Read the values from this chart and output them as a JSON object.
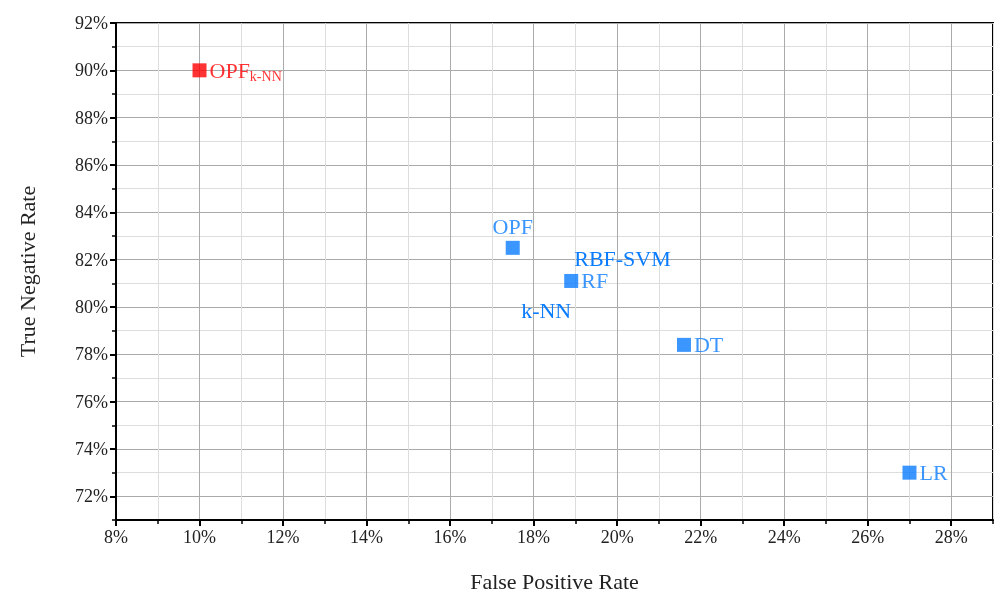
{
  "chart_data": {
    "type": "scatter",
    "xlabel": "False Positive Rate",
    "ylabel": "True Negative Rate",
    "xlim": [
      8,
      29
    ],
    "ylim": [
      71,
      92
    ],
    "xticks": [
      {
        "value": 8,
        "label": "8%"
      },
      {
        "value": 10,
        "label": "10%"
      },
      {
        "value": 12,
        "label": "12%"
      },
      {
        "value": 14,
        "label": "14%"
      },
      {
        "value": 16,
        "label": "16%"
      },
      {
        "value": 18,
        "label": "18%"
      },
      {
        "value": 20,
        "label": "20%"
      },
      {
        "value": 22,
        "label": "22%"
      },
      {
        "value": 24,
        "label": "24%"
      },
      {
        "value": 26,
        "label": "26%"
      },
      {
        "value": 28,
        "label": "28%"
      }
    ],
    "yticks": [
      {
        "value": 72,
        "label": "72%"
      },
      {
        "value": 74,
        "label": "74%"
      },
      {
        "value": 76,
        "label": "76%"
      },
      {
        "value": 78,
        "label": "78%"
      },
      {
        "value": 80,
        "label": "80%"
      },
      {
        "value": 82,
        "label": "82%"
      },
      {
        "value": 84,
        "label": "84%"
      },
      {
        "value": 86,
        "label": "86%"
      },
      {
        "value": 88,
        "label": "88%"
      },
      {
        "value": 90,
        "label": "90%"
      },
      {
        "value": 92,
        "label": "92%"
      }
    ],
    "grid": true,
    "marker": "square",
    "legend": false,
    "series": [
      {
        "name": "OPF$_{k-NN}$",
        "color": "#ff0000",
        "x": [
          10
        ],
        "values": [
          90
        ]
      },
      {
        "name": "OPF",
        "color": "#0a7cff",
        "x": [
          17.5
        ],
        "values": [
          82.5
        ]
      },
      {
        "name": "RF",
        "color": "#0a7cff",
        "x": [
          18.9
        ],
        "values": [
          81.1
        ]
      },
      {
        "name": "DT",
        "color": "#0a7cff",
        "x": [
          21.6
        ],
        "values": [
          78.4
        ]
      },
      {
        "name": "LR",
        "color": "#0a7cff",
        "x": [
          27.0
        ],
        "values": [
          73
        ]
      }
    ],
    "annotations": [
      {
        "text": "RBF-SVM",
        "x": 18.9,
        "y": 81.1
      },
      {
        "text": "k-NN",
        "x": 18.9,
        "y": 81.1
      }
    ]
  }
}
